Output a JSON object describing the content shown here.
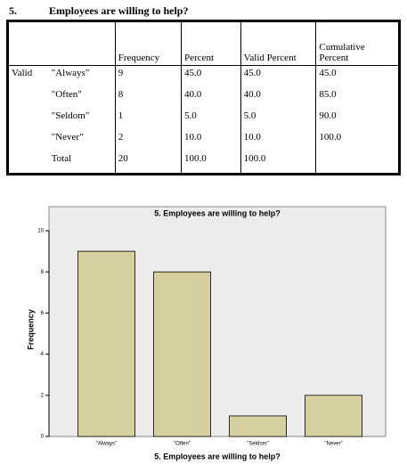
{
  "heading": {
    "number": "5.",
    "title": "Employees are willing to help?"
  },
  "table": {
    "columns": [
      "Frequency",
      "Percent",
      "Valid Percent",
      "Cumulative Percent"
    ],
    "row_group": "Valid",
    "rows": [
      {
        "label": "\"Always\"",
        "values": [
          "9",
          "45.0",
          "45.0",
          "45.0"
        ]
      },
      {
        "label": "\"Often\"",
        "values": [
          "8",
          "40.0",
          "40.0",
          "85.0"
        ]
      },
      {
        "label": "\"Seldom\"",
        "values": [
          "1",
          "5.0",
          "5.0",
          "90.0"
        ]
      },
      {
        "label": "\"Never\"",
        "values": [
          "2",
          "10.0",
          "10.0",
          "100.0"
        ]
      },
      {
        "label": "Total",
        "values": [
          "20",
          "100.0",
          "100.0"
        ]
      }
    ]
  },
  "chart_data": {
    "type": "bar",
    "title": "5. Employees are willing to help?",
    "x_label": "5. Employees are willing to help?",
    "y_label": "Frequency",
    "categories": [
      "\"Always\"",
      "\"Often\"",
      "\"Seldom\"",
      "\"Never\""
    ],
    "values": [
      9,
      8,
      1,
      2
    ],
    "color": "#d6d0a0",
    "ylim": [
      0,
      10
    ],
    "yticks": [
      0,
      2,
      4,
      6,
      8,
      10
    ]
  }
}
